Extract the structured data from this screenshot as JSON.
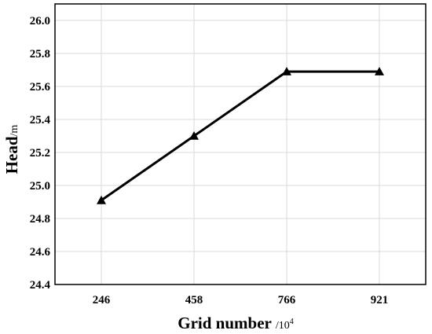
{
  "chart_data": {
    "type": "line",
    "categories": [
      "246",
      "458",
      "766",
      "921"
    ],
    "series": [
      {
        "values": [
          24.91,
          25.3,
          25.69,
          25.69
        ]
      }
    ],
    "xlabel": {
      "main": "Grid number",
      "unit": "/10",
      "unit_sup": "4"
    },
    "ylabel": {
      "main": "Head",
      "unit": "/m"
    },
    "ylim": [
      24.4,
      26.1
    ],
    "yticks": [
      "24.4",
      "24.6",
      "24.8",
      "25.0",
      "25.2",
      "25.4",
      "25.6",
      "25.8",
      "26.0"
    ],
    "grid": true,
    "marker": "triangle",
    "line_color": "#000000",
    "grid_color": "#d9d9d9"
  }
}
